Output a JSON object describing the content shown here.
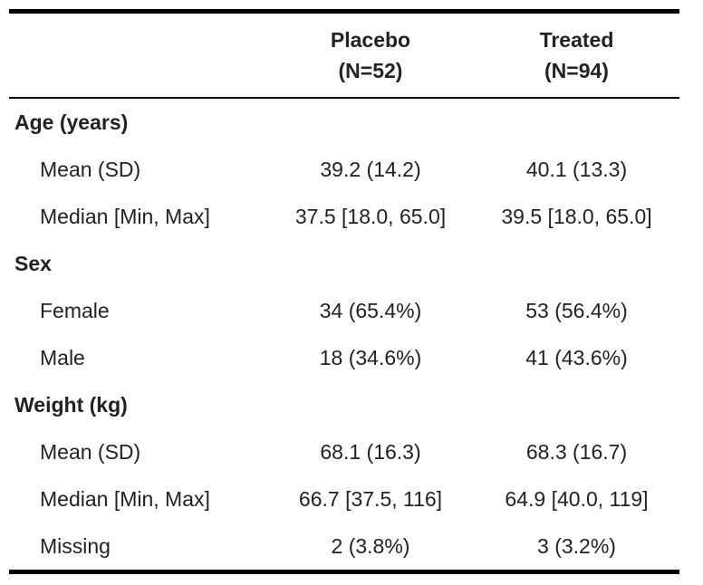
{
  "columns": [
    {
      "name": "Placebo",
      "n": "(N=52)"
    },
    {
      "name": "Treated",
      "n": "(N=94)"
    }
  ],
  "rows": [
    {
      "type": "group",
      "label": "Age (years)",
      "values": [
        "",
        ""
      ]
    },
    {
      "type": "item",
      "label": "Mean (SD)",
      "values": [
        "39.2 (14.2)",
        "40.1 (13.3)"
      ]
    },
    {
      "type": "item",
      "label": "Median [Min, Max]",
      "values": [
        "37.5 [18.0, 65.0]",
        "39.5 [18.0, 65.0]"
      ]
    },
    {
      "type": "group",
      "label": "Sex",
      "values": [
        "",
        ""
      ]
    },
    {
      "type": "item",
      "label": "Female",
      "values": [
        "34 (65.4%)",
        "53 (56.4%)"
      ]
    },
    {
      "type": "item",
      "label": "Male",
      "values": [
        "18 (34.6%)",
        "41 (43.6%)"
      ]
    },
    {
      "type": "group",
      "label": "Weight (kg)",
      "values": [
        "",
        ""
      ]
    },
    {
      "type": "item",
      "label": "Mean (SD)",
      "values": [
        "68.1 (16.3)",
        "68.3 (16.7)"
      ]
    },
    {
      "type": "item",
      "label": "Median [Min, Max]",
      "values": [
        "66.7 [37.5, 116]",
        "64.9 [40.0, 119]"
      ]
    },
    {
      "type": "item",
      "label": "Missing",
      "values": [
        "2 (3.8%)",
        "3 (3.2%)"
      ]
    }
  ]
}
